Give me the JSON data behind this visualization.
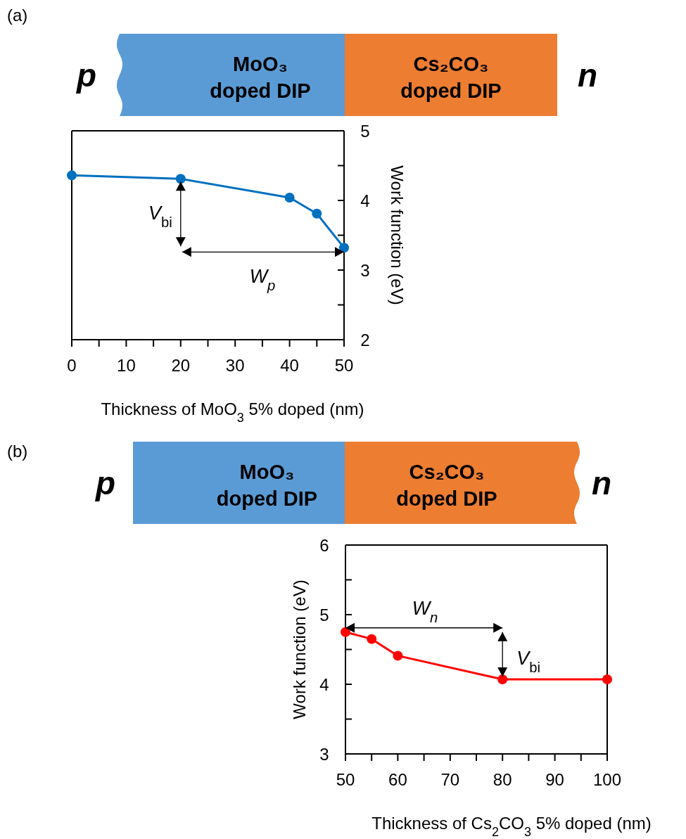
{
  "chart_data": [
    {
      "type": "line",
      "xlabel": "Thickness of MoO$_{3}$ 5% doped (nm)",
      "ylabel": "Work function (eV)",
      "x": [
        0,
        20,
        40,
        45,
        50
      ],
      "series": [
        {
          "color": "#0070c0",
          "values": [
            4.36,
            4.31,
            4.04,
            3.81,
            3.32
          ]
        }
      ],
      "xlim": [
        0,
        50
      ],
      "ylim": [
        2,
        5
      ],
      "xticks": [
        0,
        {
          "value": 5,
          "label": null
        },
        10,
        {
          "value": 15,
          "label": null
        },
        20,
        {
          "value": 25,
          "label": null
        },
        30,
        {
          "value": 35,
          "label": null
        },
        40,
        {
          "value": 45,
          "label": null
        },
        50
      ],
      "yticks": [
        2,
        {
          "value": 2.5,
          "label": null
        },
        3,
        {
          "value": 3.5,
          "label": null
        },
        4,
        {
          "value": 4.5,
          "label": null
        },
        5
      ],
      "annotations": [
        {
          "text": "V$_{bi}$",
          "x": 20,
          "y": 4.31
        },
        "W$_{p}$",
        "p",
        "MoO₃ doped DIP",
        "Cs₂CO₃ doped DIP",
        "n",
        "(a)"
      ],
      "marker": "circle",
      "line_style": "solid",
      "grid": false
    },
    {
      "type": "line",
      "xlabel": "Thickness of Cs$_{2}$CO$_{3}$ 5% doped (nm)",
      "ylabel": "Work function (eV)",
      "x": [
        50,
        55,
        60,
        80,
        100
      ],
      "series": [
        {
          "color": "#ff0000",
          "values": [
            4.75,
            4.65,
            4.41,
            4.07,
            4.07
          ]
        }
      ],
      "xlim": [
        50,
        100
      ],
      "ylim": [
        3,
        6
      ],
      "xticks": [
        50,
        {
          "value": 55,
          "label": null
        },
        60,
        {
          "value": 65,
          "label": null
        },
        70,
        {
          "value": 75,
          "label": null
        },
        80,
        {
          "value": 85,
          "label": null
        },
        90,
        {
          "value": 95,
          "label": null
        },
        100
      ],
      "yticks": [
        3,
        {
          "value": 3.5,
          "label": null
        },
        4,
        {
          "value": 4.5,
          "label": null
        },
        5,
        {
          "value": 5.5,
          "label": null
        },
        6
      ],
      "annotations": [
        "W$_{n}$",
        {
          "text": "V$_{bi}$",
          "x": 80,
          "y": 4.07
        },
        "p",
        "MoO₃ doped DIP",
        "Cs₂CO₃ doped DIP",
        "n",
        "(b)"
      ],
      "marker": "circle",
      "line_style": "solid",
      "grid": false
    }
  ]
}
